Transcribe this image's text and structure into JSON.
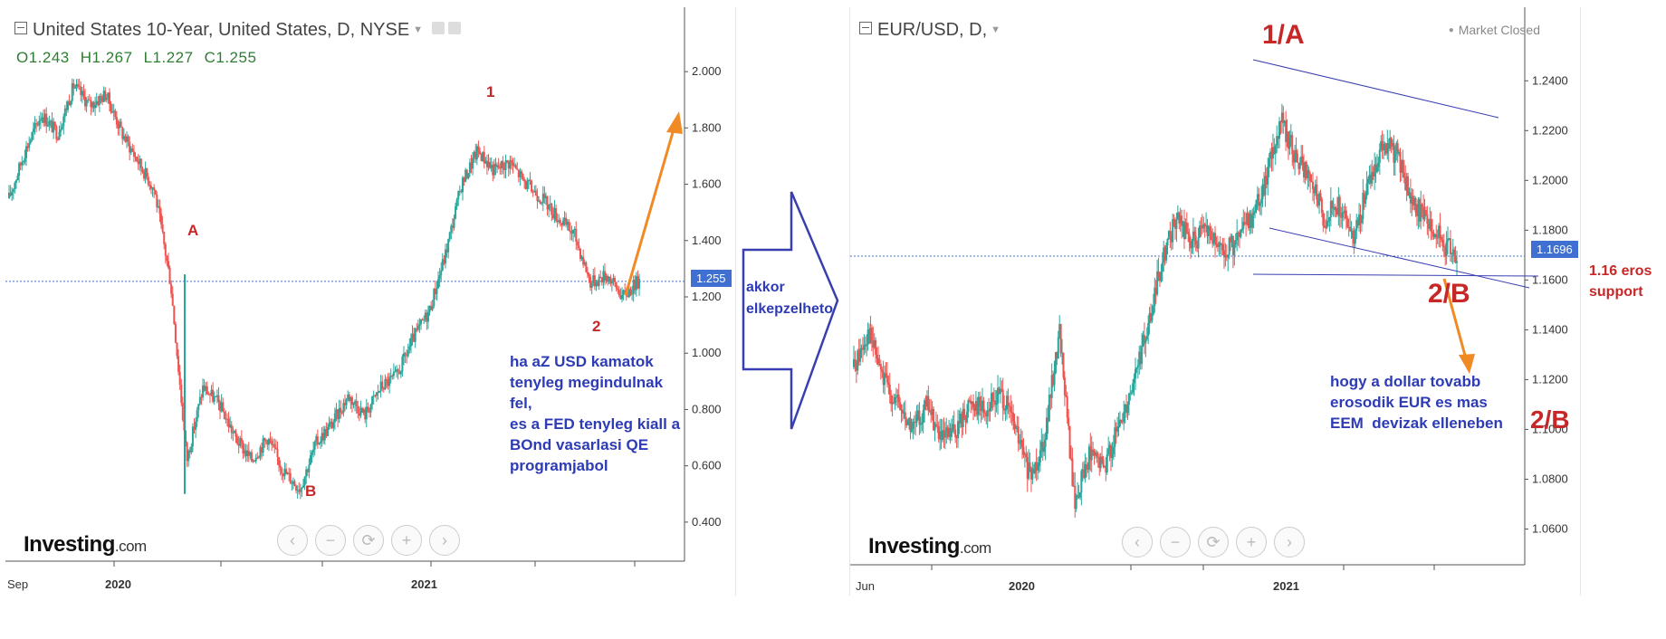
{
  "left_chart": {
    "title": "United States 10-Year, United States, D, NYSE",
    "ohlc": {
      "o": "O1.243",
      "h": "H1.267",
      "l": "L1.227",
      "c": "C1.255"
    },
    "price_tag": "1.255",
    "logo": "Investing",
    "logo_suffix": ".com",
    "x_labels": [
      "Sep",
      "2020",
      "2021"
    ],
    "annotations": {
      "A": "A",
      "B": "B",
      "one": "1",
      "two": "2"
    },
    "note": "ha aZ USD kamatok\ntenyleg megindulnak\nfel,\nes a FED tenyleg kiall a\nBOnd vasarlasi QE\nprogramjabol"
  },
  "middle": {
    "arrow_text": "akkor\nelkepzelheto"
  },
  "right_chart": {
    "title": "EUR/USD, D,",
    "status": "Market Closed",
    "price_tag": "1.1696",
    "logo": "Investing",
    "logo_suffix": ".com",
    "x_labels": [
      "Jun",
      "2020",
      "2021"
    ],
    "annotations": {
      "one_a": "1/A",
      "two_b": "2/B",
      "two_b_right": "2/B"
    },
    "support_note": "1.16 eros\nsupport",
    "note": "hogy a dollar tovabb\nerosodik EUR es mas\nEEM  devizak elleneben"
  },
  "nav_buttons": [
    "‹",
    "−",
    "⟳",
    "+",
    "›"
  ],
  "colors": {
    "up": "#26a69a",
    "down": "#ef5350",
    "accent": "#3f6fd1",
    "annotation_red": "#c62828",
    "annotation_blue": "#2d3bb5",
    "arrow_orange": "#f08a24"
  },
  "chart_data": [
    {
      "type": "candlestick",
      "title": "United States 10-Year, United States, D, NYSE",
      "x_range": [
        "2019-09",
        "2021-06"
      ],
      "ylim": [
        0.3,
        2.1
      ],
      "y_ticks": [
        2.0,
        1.8,
        1.6,
        1.4,
        1.2,
        1.0,
        0.8,
        0.6,
        0.4
      ],
      "last_value": 1.255,
      "series": [
        {
          "values": [
            1.55,
            1.72,
            1.85,
            1.78,
            1.95,
            1.88,
            1.92,
            1.78,
            1.68,
            1.58,
            1.25,
            0.62,
            0.88,
            0.82,
            0.7,
            0.62,
            0.7,
            0.58,
            0.52,
            0.68,
            0.75,
            0.85,
            0.78,
            0.88,
            0.92,
            1.05,
            1.15,
            1.35,
            1.6,
            1.72,
            1.65,
            1.68,
            1.6,
            1.55,
            1.48,
            1.42,
            1.25,
            1.28,
            1.2,
            1.26
          ]
        }
      ]
    },
    {
      "type": "candlestick",
      "title": "EUR/USD, D,",
      "x_range": [
        "2019-06",
        "2021-06"
      ],
      "ylim": [
        1.05,
        1.255
      ],
      "y_ticks": [
        1.24,
        1.22,
        1.2,
        1.18,
        1.16,
        1.14,
        1.12,
        1.1,
        1.08,
        1.06
      ],
      "last_value": 1.1696,
      "series": [
        {
          "values": [
            1.125,
            1.14,
            1.12,
            1.11,
            1.1,
            1.11,
            1.095,
            1.1,
            1.112,
            1.108,
            1.115,
            1.1,
            1.08,
            1.098,
            1.14,
            1.07,
            1.09,
            1.085,
            1.1,
            1.12,
            1.14,
            1.17,
            1.185,
            1.175,
            1.18,
            1.17,
            1.175,
            1.185,
            1.2,
            1.225,
            1.21,
            1.2,
            1.185,
            1.19,
            1.175,
            1.2,
            1.215,
            1.21,
            1.19,
            1.185,
            1.175,
            1.17
          ]
        }
      ]
    }
  ]
}
